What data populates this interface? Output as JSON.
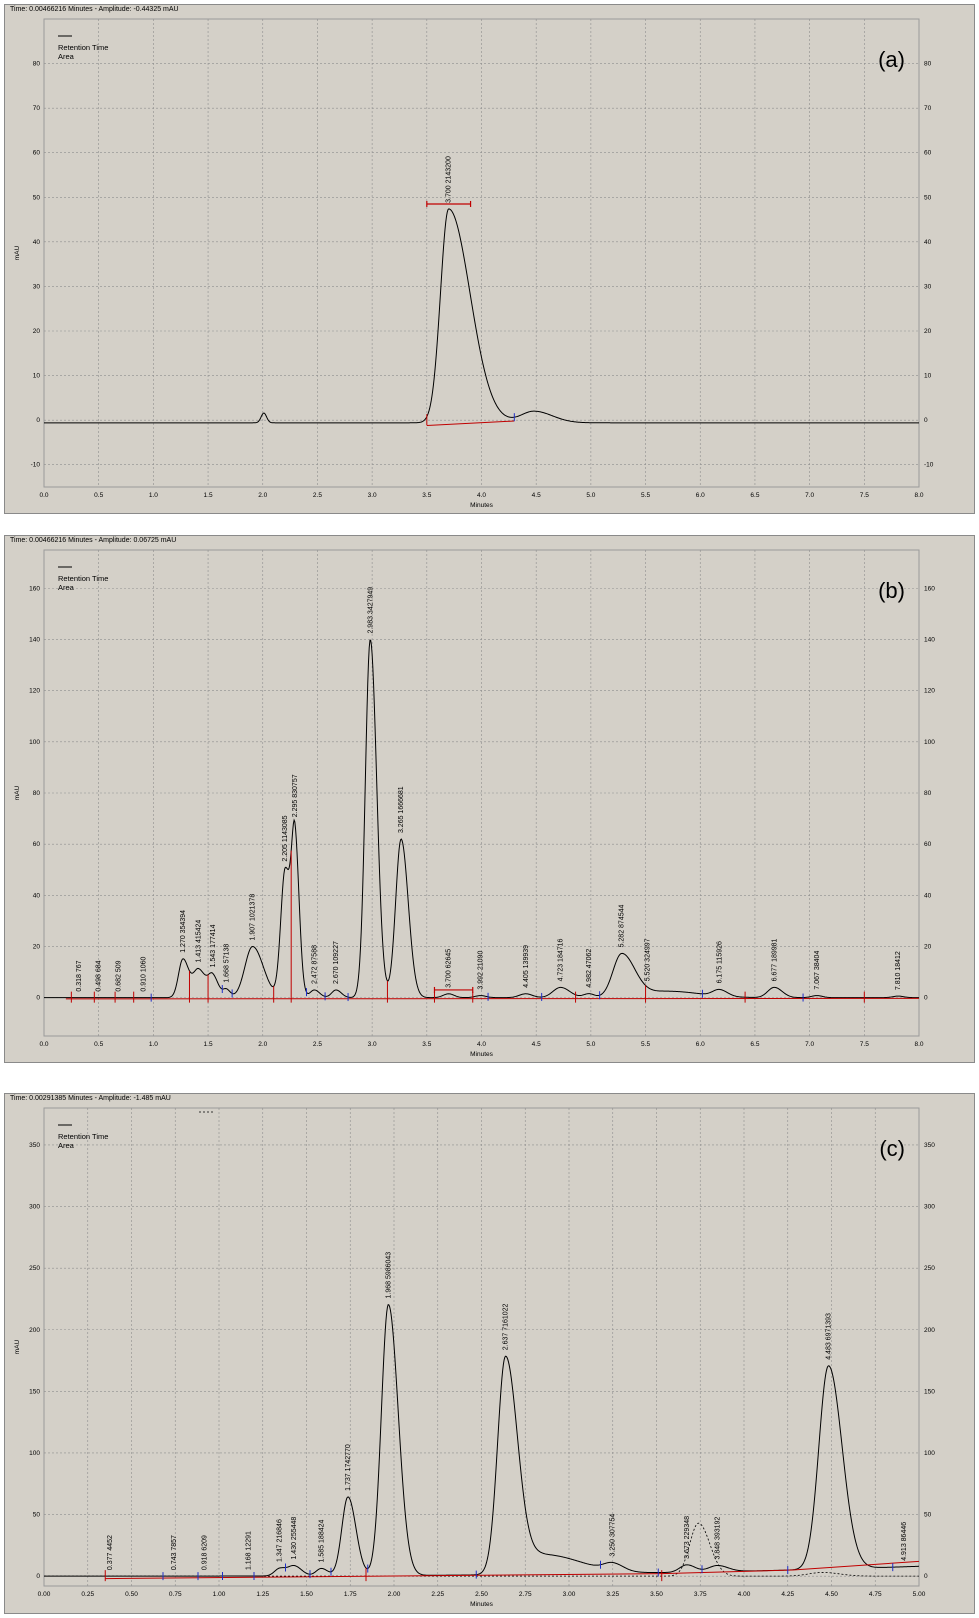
{
  "chart_data": [
    {
      "type": "line",
      "panel_label": "(a)",
      "status": "Time:  0.00466216 Minutes - Amplitude:  -0.44325 mAU",
      "legend": [
        "Retention Time",
        "Area"
      ],
      "xlabel": "Minutes",
      "ylabel": "mAU",
      "xlim": [
        0,
        8
      ],
      "ylim": [
        -15,
        90
      ],
      "xticks": [
        "0.0",
        "0.5",
        "1.0",
        "1.5",
        "2.0",
        "2.5",
        "3.0",
        "3.5",
        "4.0",
        "4.5",
        "5.0",
        "5.5",
        "6.0",
        "6.5",
        "7.0",
        "7.5",
        "8.0"
      ],
      "yticks": [
        "-10",
        "0",
        "10",
        "20",
        "30",
        "40",
        "50",
        "60",
        "70",
        "80"
      ],
      "grid": true,
      "baseline": -0.6,
      "peaks": [
        {
          "x": 2.01,
          "h": 2.2,
          "w": 0.025,
          "r": 1
        },
        {
          "x": 3.7,
          "h": 48,
          "w": 0.075,
          "r": 2.6
        },
        {
          "x": 4.48,
          "h": 2.6,
          "w": 0.12,
          "r": 1.4
        }
      ],
      "peak_labels": [
        {
          "x": 3.7,
          "label": "3.700  2143200"
        }
      ],
      "integration": {
        "brackets": [
          {
            "x1": 3.5,
            "x2": 3.9,
            "y": 48.5
          }
        ],
        "baselines": [
          {
            "x1": 3.5,
            "y1": -1.2,
            "x2": 4.3,
            "y2": -0.2
          }
        ],
        "red_markers": [
          3.5
        ],
        "blue_markers": [
          4.3
        ]
      }
    },
    {
      "type": "line",
      "panel_label": "(b)",
      "status": "Time:  0.00466216 Minutes - Amplitude:  0.06725 mAU",
      "legend": [
        "Retention Time",
        "Area"
      ],
      "xlabel": "Minutes",
      "ylabel": "mAU",
      "xlim": [
        0,
        8
      ],
      "ylim": [
        -15,
        175
      ],
      "xticks": [
        "0.0",
        "0.5",
        "1.0",
        "1.5",
        "2.0",
        "2.5",
        "3.0",
        "3.5",
        "4.0",
        "4.5",
        "5.0",
        "5.5",
        "6.0",
        "6.5",
        "7.0",
        "7.5",
        "8.0"
      ],
      "yticks": [
        "0",
        "20",
        "40",
        "60",
        "80",
        "100",
        "120",
        "140",
        "160"
      ],
      "grid": true,
      "baseline": 0,
      "peaks": [
        {
          "x": 1.27,
          "h": 15,
          "w": 0.04,
          "r": 1.3
        },
        {
          "x": 1.413,
          "h": 11,
          "w": 0.05,
          "r": 1.3
        },
        {
          "x": 1.543,
          "h": 8,
          "w": 0.04,
          "r": 1.3
        },
        {
          "x": 1.668,
          "h": 3,
          "w": 0.03,
          "r": 1.2
        },
        {
          "x": 1.907,
          "h": 20,
          "w": 0.07,
          "r": 1.4
        },
        {
          "x": 2.205,
          "h": 50,
          "w": 0.04,
          "r": 1.3
        },
        {
          "x": 2.295,
          "h": 57,
          "w": 0.03,
          "r": 1.3
        },
        {
          "x": 2.472,
          "h": 3,
          "w": 0.04,
          "r": 1.2
        },
        {
          "x": 2.67,
          "h": 3,
          "w": 0.04,
          "r": 1.2
        },
        {
          "x": 2.983,
          "h": 140,
          "w": 0.045,
          "r": 1.3
        },
        {
          "x": 3.265,
          "h": 62,
          "w": 0.05,
          "r": 1.3
        },
        {
          "x": 3.7,
          "h": 1.5,
          "w": 0.05,
          "r": 1
        },
        {
          "x": 3.992,
          "h": 0.8,
          "w": 0.05,
          "r": 1
        },
        {
          "x": 4.405,
          "h": 1.5,
          "w": 0.06,
          "r": 1
        },
        {
          "x": 4.723,
          "h": 4,
          "w": 0.07,
          "r": 1.2
        },
        {
          "x": 4.982,
          "h": 1.5,
          "w": 0.05,
          "r": 1
        },
        {
          "x": 5.282,
          "h": 17,
          "w": 0.08,
          "r": 1.5
        },
        {
          "x": 5.7,
          "h": 2.5,
          "w": 0.2,
          "r": 1.5
        },
        {
          "x": 6.175,
          "h": 2.5,
          "w": 0.06,
          "r": 1.2
        },
        {
          "x": 6.677,
          "h": 4,
          "w": 0.06,
          "r": 1.2
        },
        {
          "x": 7.067,
          "h": 0.8,
          "w": 0.05,
          "r": 1
        },
        {
          "x": 7.81,
          "h": 0.6,
          "w": 0.05,
          "r": 1
        }
      ],
      "peak_labels": [
        {
          "x": 0.318,
          "label": "0.318  767"
        },
        {
          "x": 0.498,
          "label": "0.498  684"
        },
        {
          "x": 0.682,
          "label": "0.682  509"
        },
        {
          "x": 0.91,
          "label": "0.910  1060"
        },
        {
          "x": 1.27,
          "label": "1.270  354394"
        },
        {
          "x": 1.413,
          "label": "1.413  415424"
        },
        {
          "x": 1.543,
          "label": "1.543  177414"
        },
        {
          "x": 1.668,
          "label": "1.668  57138"
        },
        {
          "x": 1.907,
          "label": "1.907  1021378"
        },
        {
          "x": 2.205,
          "label": "2.205  1143085"
        },
        {
          "x": 2.295,
          "label": "2.295  830757"
        },
        {
          "x": 2.472,
          "label": "2.472  87588"
        },
        {
          "x": 2.67,
          "label": "2.670  109227"
        },
        {
          "x": 2.983,
          "label": "2.983  3427949"
        },
        {
          "x": 3.265,
          "label": "3.265  1666681"
        },
        {
          "x": 3.7,
          "label": "3.700  62645"
        },
        {
          "x": 3.992,
          "label": "3.992  21090"
        },
        {
          "x": 4.405,
          "label": "4.405  139939"
        },
        {
          "x": 4.723,
          "label": "4.723  184716"
        },
        {
          "x": 4.982,
          "label": "4.982  47062"
        },
        {
          "x": 5.282,
          "label": "5.282  874544"
        },
        {
          "x": 5.52,
          "label": "5.520  324997"
        },
        {
          "x": 6.175,
          "label": "6.175  115926"
        },
        {
          "x": 6.677,
          "label": "6.677  189981"
        },
        {
          "x": 7.067,
          "label": "7.067  38404"
        },
        {
          "x": 7.81,
          "label": "7.810  18412"
        }
      ],
      "integration": {
        "brackets": [
          {
            "x1": 3.57,
            "x2": 3.92,
            "y": 3
          }
        ],
        "baselines": [
          {
            "x1": 0.2,
            "y1": -0.5,
            "x2": 8.0,
            "y2": -0.3
          }
        ],
        "red_markers": [
          0.25,
          0.46,
          0.65,
          0.82,
          1.33,
          1.5,
          2.1,
          2.26,
          3.14,
          3.57,
          3.92,
          4.86,
          5.5,
          6.41,
          7.5
        ],
        "blue_markers": [
          0.98,
          1.63,
          1.72,
          2.4,
          2.57,
          2.78,
          4.06,
          4.55,
          5.08,
          6.02,
          6.94
        ]
      }
    },
    {
      "type": "line",
      "panel_label": "(c)",
      "status": "Time:  0.00291385 Minutes - Amplitude:  -1.485 mAU",
      "legend": [
        "Retention Time",
        "Area"
      ],
      "xlabel": "Minutes",
      "ylabel": "mAU",
      "xlim": [
        0,
        5
      ],
      "ylim": [
        -8,
        380
      ],
      "xticks": [
        "0.00",
        "0.25",
        "0.50",
        "0.75",
        "1.00",
        "1.25",
        "1.50",
        "1.75",
        "2.00",
        "2.25",
        "2.50",
        "2.75",
        "3.00",
        "3.25",
        "3.50",
        "3.75",
        "4.00",
        "4.25",
        "4.50",
        "4.75",
        "5.00"
      ],
      "yticks": [
        "0",
        "50",
        "100",
        "150",
        "200",
        "250",
        "300",
        "350"
      ],
      "grid": true,
      "baseline": 0,
      "peaks": [
        {
          "x": 1.347,
          "h": 6,
          "w": 0.03,
          "r": 1.2
        },
        {
          "x": 1.43,
          "h": 8,
          "w": 0.035,
          "r": 1.2
        },
        {
          "x": 1.585,
          "h": 6,
          "w": 0.03,
          "r": 1.2
        },
        {
          "x": 1.737,
          "h": 64,
          "w": 0.035,
          "r": 1.3
        },
        {
          "x": 1.968,
          "h": 220,
          "w": 0.04,
          "r": 1.4
        },
        {
          "x": 2.637,
          "h": 174,
          "w": 0.045,
          "r": 1.5
        },
        {
          "x": 2.85,
          "h": 16,
          "w": 0.12,
          "r": 1.8
        },
        {
          "x": 3.25,
          "h": 6,
          "w": 0.05,
          "r": 1.2
        },
        {
          "x": 3.673,
          "h": 6,
          "w": 0.04,
          "r": 1.2
        },
        {
          "x": 3.848,
          "h": 5,
          "w": 0.05,
          "r": 1.2
        },
        {
          "x": 4.483,
          "h": 165,
          "w": 0.055,
          "r": 1.4
        }
      ],
      "dashed_peaks": [
        {
          "x": 3.74,
          "h": 43,
          "w": 0.05,
          "r": 1.3
        },
        {
          "x": 4.45,
          "h": 3,
          "w": 0.08,
          "r": 1.2
        }
      ],
      "drift": 8,
      "peak_labels": [
        {
          "x": 0.377,
          "label": "0.377  4452"
        },
        {
          "x": 0.743,
          "label": "0.743  7857"
        },
        {
          "x": 0.918,
          "label": "0.918  6209"
        },
        {
          "x": 1.168,
          "label": "1.168  12291"
        },
        {
          "x": 1.347,
          "label": "1.347  216846"
        },
        {
          "x": 1.43,
          "label": "1.430  255448"
        },
        {
          "x": 1.585,
          "label": "1.585  188424"
        },
        {
          "x": 1.737,
          "label": "1.737  1742770"
        },
        {
          "x": 1.968,
          "label": "1.968  5986043"
        },
        {
          "x": 2.637,
          "label": "2.637  7161022"
        },
        {
          "x": 3.25,
          "label": "3.250  307754"
        },
        {
          "x": 3.673,
          "label": "3.673  229348"
        },
        {
          "x": 3.848,
          "label": "3.848  393192"
        },
        {
          "x": 4.483,
          "label": "4.483  6971393"
        },
        {
          "x": 4.913,
          "label": "4.913  86446"
        }
      ],
      "integration": {
        "brackets": [],
        "baselines": [
          {
            "x1": 0.35,
            "y1": -2,
            "x2": 3.53,
            "y2": 2
          },
          {
            "x1": 3.53,
            "y1": 2,
            "x2": 4.28,
            "y2": 5
          },
          {
            "x1": 4.28,
            "y1": 5,
            "x2": 5.0,
            "y2": 12
          }
        ],
        "red_markers": [
          0.35,
          1.84,
          3.53
        ],
        "blue_markers": [
          0.68,
          0.88,
          1.02,
          1.2,
          1.38,
          1.52,
          1.64,
          1.85,
          2.47,
          3.18,
          3.51,
          3.76,
          4.25,
          4.85
        ]
      }
    }
  ]
}
